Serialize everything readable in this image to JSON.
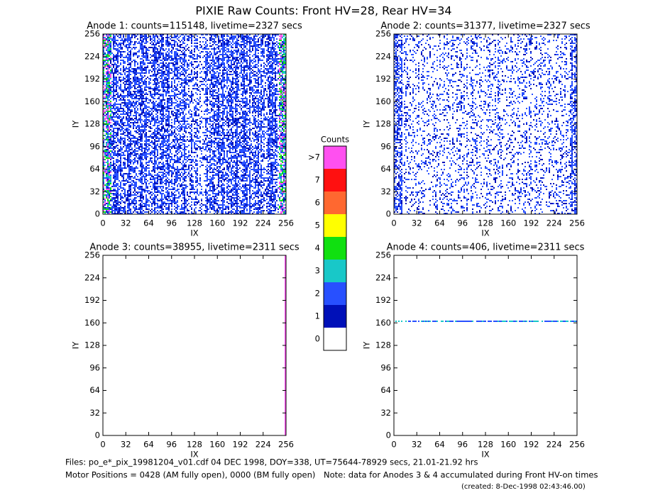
{
  "title": "PIXIE Raw Counts:  Front HV=28, Rear HV=34",
  "chart_data": [
    {
      "type": "heatmap",
      "title": "Anode 1: counts=115148, livetime=2327 secs",
      "xlabel": "IX",
      "ylabel": "IY",
      "xlim": [
        0,
        256
      ],
      "ylim": [
        0,
        256
      ],
      "xticks": [
        0,
        32,
        64,
        96,
        128,
        160,
        192,
        224,
        256
      ],
      "yticks": [
        0,
        32,
        64,
        96,
        128,
        160,
        192,
        224,
        256
      ]
    },
    {
      "type": "heatmap",
      "title": "Anode 2: counts=31377, livetime=2327 secs",
      "xlabel": "IX",
      "ylabel": "IY",
      "xlim": [
        0,
        256
      ],
      "ylim": [
        0,
        256
      ],
      "xticks": [
        0,
        32,
        64,
        96,
        128,
        160,
        192,
        224,
        256
      ],
      "yticks": [
        0,
        32,
        64,
        96,
        128,
        160,
        192,
        224,
        256
      ]
    },
    {
      "type": "heatmap",
      "title": "Anode 3: counts=38955, livetime=2311 secs",
      "xlabel": "IX",
      "ylabel": "IY",
      "xlim": [
        0,
        256
      ],
      "ylim": [
        0,
        256
      ],
      "xticks": [
        0,
        32,
        64,
        96,
        128,
        160,
        192,
        224,
        256
      ],
      "yticks": [
        0,
        32,
        64,
        96,
        128,
        160,
        192,
        224,
        256
      ]
    },
    {
      "type": "heatmap",
      "title": "Anode 4: counts=406, livetime=2311 secs",
      "xlabel": "IX",
      "ylabel": "IY",
      "xlim": [
        0,
        256
      ],
      "ylim": [
        0,
        256
      ],
      "xticks": [
        0,
        32,
        64,
        96,
        128,
        160,
        192,
        224,
        256
      ],
      "yticks": [
        0,
        32,
        64,
        96,
        128,
        160,
        192,
        224,
        256
      ]
    }
  ],
  "colorbar": {
    "title": "Counts",
    "levels": [
      0,
      1,
      2,
      3,
      4,
      5,
      6,
      7
    ],
    "top_label": ">7",
    "colors": [
      "#ffffff",
      "#0010b8",
      "#2850ff",
      "#18c8c8",
      "#10e010",
      "#ffff00",
      "#ff6830",
      "#ff1010",
      "#ff50f0"
    ]
  },
  "footer": {
    "files": "Files: po_e*_pix_19981204_v01.cdf   04 DEC 1998, DOY=338, UT=75644-78929 secs, 21.01-21.92 hrs",
    "motor": "Motor Positions = 0428 (AM fully open), 0000 (BM fully open)",
    "note": "Note: data for Anodes 3 & 4 accumulated during Front HV-on times",
    "created": "(created:  8-Dec-1998 02:43:46.00)"
  }
}
